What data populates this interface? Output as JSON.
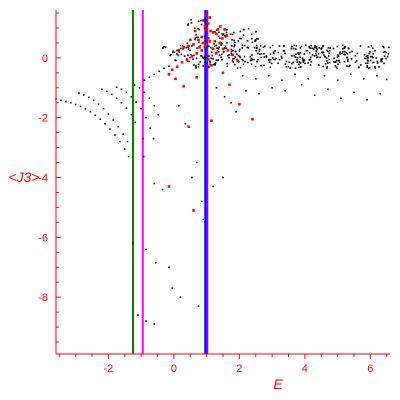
{
  "chart_data": {
    "type": "scatter",
    "xlabel": "E",
    "ylabel": "<J3>",
    "xlim": [
      -3.6,
      6.6
    ],
    "ylim": [
      -9.9,
      1.6
    ],
    "x_ticks": [
      -2,
      0,
      2,
      4,
      6
    ],
    "x_tick_labels": [
      "-2",
      "0",
      "2",
      "4",
      "6"
    ],
    "y_ticks": [
      0,
      -2,
      -4,
      -6,
      -8
    ],
    "y_tick_labels": [
      "0",
      "-2",
      "-4",
      "-6",
      "-8"
    ],
    "x_minor_step": 0.5,
    "y_minor_step": 0.5,
    "grid": false,
    "vertical_lines": [
      {
        "x": -1.25,
        "color": "#008000"
      },
      {
        "x": -0.95,
        "color": "#ff00ff"
      },
      {
        "x": 1.02,
        "color": "#8000ff"
      },
      {
        "x": 0.96,
        "color": "#0000ff"
      }
    ],
    "series": [
      {
        "color": "#000000",
        "marker_size": 1.6,
        "points": [
          [
            -3.6,
            -1.38
          ],
          [
            -3.45,
            -1.42
          ],
          [
            -3.3,
            -1.46
          ],
          [
            -3.15,
            -1.5
          ],
          [
            -3.0,
            -1.56
          ],
          [
            -2.85,
            -1.62
          ],
          [
            -2.7,
            -1.7
          ],
          [
            -2.55,
            -1.8
          ],
          [
            -2.4,
            -1.92
          ],
          [
            -2.25,
            -2.05
          ],
          [
            -2.1,
            -2.2
          ],
          [
            -1.95,
            -2.38
          ],
          [
            -1.8,
            -2.58
          ],
          [
            -1.65,
            -2.8
          ],
          [
            -1.5,
            -3.05
          ],
          [
            -1.38,
            -3.3
          ],
          [
            -2.9,
            -1.18
          ],
          [
            -2.75,
            -1.24
          ],
          [
            -2.6,
            -1.32
          ],
          [
            -2.45,
            -1.42
          ],
          [
            -2.3,
            -1.55
          ],
          [
            -2.15,
            -1.7
          ],
          [
            -2.0,
            -1.88
          ],
          [
            -1.85,
            -2.08
          ],
          [
            -1.7,
            -2.3
          ],
          [
            -1.55,
            -2.55
          ],
          [
            -1.42,
            -2.8
          ],
          [
            -2.2,
            -1.05
          ],
          [
            -2.05,
            -1.12
          ],
          [
            -1.9,
            -1.22
          ],
          [
            -1.75,
            -1.35
          ],
          [
            -1.6,
            -1.5
          ],
          [
            -1.45,
            -1.68
          ],
          [
            -1.3,
            -1.9
          ],
          [
            -1.18,
            -2.15
          ],
          [
            -1.75,
            -0.98
          ],
          [
            -1.6,
            -1.05
          ],
          [
            -1.45,
            -1.15
          ],
          [
            -1.3,
            -1.3
          ],
          [
            -1.15,
            -1.48
          ],
          [
            -1.0,
            -1.7
          ],
          [
            -0.85,
            -2.0
          ],
          [
            -0.72,
            -2.35
          ],
          [
            -0.62,
            -2.7
          ],
          [
            -1.2,
            -0.9
          ],
          [
            -1.05,
            -1.0
          ],
          [
            -0.9,
            -1.15
          ],
          [
            -0.75,
            -1.35
          ],
          [
            -0.6,
            -1.6
          ],
          [
            -0.48,
            -1.9
          ],
          [
            -0.9,
            -0.75
          ],
          [
            -0.75,
            -0.65
          ],
          [
            -0.6,
            -0.55
          ],
          [
            -0.45,
            -0.45
          ],
          [
            -0.3,
            -0.35
          ],
          [
            -0.15,
            -0.28
          ],
          [
            -0.95,
            -2.7
          ],
          [
            -0.92,
            -3.3
          ],
          [
            -0.6,
            -4.2
          ],
          [
            -0.35,
            -4.4
          ],
          [
            -1.25,
            -6.2
          ],
          [
            -0.85,
            -6.4
          ],
          [
            -0.55,
            -6.85
          ],
          [
            -0.15,
            -7.0
          ],
          [
            -0.05,
            -7.7
          ],
          [
            0.2,
            -8.0
          ],
          [
            0.75,
            -8.3
          ],
          [
            -1.1,
            -8.6
          ],
          [
            -0.85,
            -8.8
          ],
          [
            -0.6,
            -8.9
          ],
          [
            0.55,
            -4.0
          ],
          [
            0.7,
            -3.5
          ],
          [
            0.85,
            -4.8
          ],
          [
            0.9,
            -5.4
          ],
          [
            1.2,
            -4.3
          ],
          [
            1.5,
            -4.0
          ],
          [
            0.35,
            -2.2
          ],
          [
            0.15,
            -1.6
          ],
          [
            1.3,
            -1.0
          ],
          [
            1.55,
            -1.3
          ],
          [
            1.75,
            -1.5
          ],
          [
            1.9,
            -1.8
          ],
          [
            2.2,
            -1.1
          ],
          [
            2.6,
            -1.2
          ],
          [
            3.0,
            -1.0
          ],
          [
            3.4,
            -1.1
          ],
          [
            3.9,
            -0.9
          ],
          [
            4.3,
            -1.25
          ],
          [
            4.7,
            -1.05
          ],
          [
            5.1,
            -1.35
          ],
          [
            5.5,
            -1.15
          ],
          [
            5.9,
            -1.4
          ],
          [
            6.3,
            -1.2
          ],
          [
            2.1,
            -0.6
          ],
          [
            2.5,
            -0.7
          ],
          [
            2.9,
            -0.6
          ],
          [
            3.3,
            -0.75
          ],
          [
            3.7,
            -0.55
          ],
          [
            4.1,
            -0.7
          ],
          [
            4.6,
            -0.6
          ],
          [
            5.0,
            -0.75
          ],
          [
            5.4,
            -0.55
          ],
          [
            5.8,
            -0.7
          ],
          [
            6.2,
            -0.6
          ],
          [
            6.5,
            -0.72
          ]
        ],
        "bands": [
          {
            "x0": -0.4,
            "x1": 6.6,
            "y0": 0.28,
            "y1": 0.42,
            "n": 90
          },
          {
            "x0": -0.2,
            "x1": 6.6,
            "y0": 0.05,
            "y1": 0.25,
            "n": 110
          },
          {
            "x0": 0.0,
            "x1": 6.6,
            "y0": -0.15,
            "y1": 0.05,
            "n": 120
          },
          {
            "x0": 0.6,
            "x1": 6.6,
            "y0": -0.35,
            "y1": -0.12,
            "n": 80
          },
          {
            "x0": 1.2,
            "x1": 2.6,
            "y0": 0.4,
            "y1": 1.0,
            "n": 45
          },
          {
            "x0": 0.4,
            "x1": 1.0,
            "y0": 0.45,
            "y1": 1.3,
            "n": 25
          }
        ]
      },
      {
        "color": "#ff0000",
        "marker_size": 2.6,
        "points": [
          [
            0.9,
            1.25
          ],
          [
            0.95,
            1.05
          ],
          [
            1.0,
            0.95
          ],
          [
            1.05,
            1.15
          ],
          [
            1.12,
            0.9
          ],
          [
            1.2,
            0.85
          ],
          [
            1.3,
            0.8
          ],
          [
            1.42,
            1.05
          ],
          [
            1.55,
            0.95
          ],
          [
            1.62,
            0.75
          ],
          [
            0.85,
            0.7
          ],
          [
            0.75,
            0.6
          ],
          [
            0.6,
            0.45
          ],
          [
            0.45,
            0.4
          ],
          [
            0.3,
            0.35
          ],
          [
            0.15,
            0.25
          ],
          [
            1.25,
            0.55
          ],
          [
            1.4,
            0.5
          ],
          [
            1.5,
            0.3
          ],
          [
            1.65,
            0.25
          ],
          [
            1.8,
            0.1
          ],
          [
            1.95,
            -0.1
          ],
          [
            0.7,
            0.15
          ],
          [
            0.55,
            0.05
          ],
          [
            0.4,
            -0.05
          ],
          [
            0.25,
            -0.15
          ],
          [
            0.1,
            -0.3
          ],
          [
            -0.05,
            -0.4
          ],
          [
            -0.15,
            -0.55
          ],
          [
            0.05,
            -0.7
          ],
          [
            0.3,
            -0.95
          ],
          [
            0.7,
            -0.65
          ],
          [
            1.1,
            0.55
          ],
          [
            1.2,
            0.3
          ],
          [
            1.3,
            0.15
          ],
          [
            0.95,
            0.4
          ],
          [
            0.85,
            0.25
          ],
          [
            1.05,
            -0.05
          ],
          [
            1.15,
            -0.25
          ],
          [
            1.5,
            -0.5
          ],
          [
            1.7,
            -0.9
          ],
          [
            2.0,
            -1.55
          ],
          [
            2.4,
            -2.05
          ],
          [
            1.15,
            -2.1
          ],
          [
            0.45,
            -2.3
          ],
          [
            -0.15,
            -4.3
          ],
          [
            0.6,
            -5.1
          ],
          [
            1.0,
            1.45
          ],
          [
            1.1,
            1.35
          ],
          [
            1.05,
            0.65
          ],
          [
            0.92,
            0.5
          ],
          [
            1.35,
            0.95
          ],
          [
            1.48,
            0.65
          ],
          [
            0.65,
            0.9
          ],
          [
            0.78,
            0.35
          ],
          [
            0.5,
            0.6
          ]
        ]
      }
    ]
  }
}
